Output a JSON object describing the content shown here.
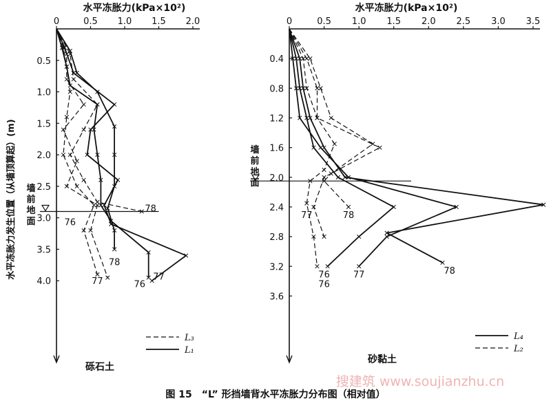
{
  "figure": {
    "caption": "图 15　“L” 形挡墙背水平冻胀力分布图（相对值）",
    "watermark": "搜建筑 www.soujianzhu.cn"
  },
  "chart_data": [
    {
      "type": "line",
      "panel_label": "砾石土",
      "xlabel": "水平冻胀力(kPa×10²)",
      "ylabel": "水平冻胀力发生位置（从墙顶算起）(m)",
      "xlim": [
        0,
        2.0
      ],
      "ylim": [
        0,
        4.5
      ],
      "xticks": [
        0,
        0.5,
        1.0,
        1.5,
        2.0
      ],
      "xtick_labels": [
        "0",
        "0.5",
        "1.0",
        "1.5",
        "2.0"
      ],
      "yticks": [
        0.5,
        1.0,
        1.5,
        2.0,
        2.5,
        3.0,
        3.5,
        4.0
      ],
      "ytick_labels": [
        "0.5",
        "1.0",
        "1.5",
        "2.0",
        "2.5",
        "3.0",
        "3.5",
        "4.0"
      ],
      "ground_label": "墙前地面",
      "ground_depth": 2.9,
      "legend_position": "bottom-right",
      "legend": [
        {
          "name": "L₃",
          "style": "dashed"
        },
        {
          "name": "L₁",
          "style": "solid"
        }
      ],
      "series": [
        {
          "name": "L₁-76",
          "style": "solid",
          "label": "76",
          "label_at": [
            1.22,
            4.1
          ],
          "points": [
            [
              0.0,
              0.0
            ],
            [
              0.08,
              0.3
            ],
            [
              0.15,
              0.6
            ],
            [
              0.2,
              0.9
            ],
            [
              0.6,
              1.2
            ],
            [
              0.55,
              1.6
            ],
            [
              0.6,
              2.0
            ],
            [
              0.65,
              2.4
            ],
            [
              0.65,
              2.8
            ],
            [
              0.8,
              3.05
            ],
            [
              1.35,
              3.55
            ],
            [
              1.35,
              3.95
            ]
          ]
        },
        {
          "name": "L₁-77",
          "style": "solid",
          "label": "77",
          "label_at": [
            1.5,
            3.98
          ],
          "points": [
            [
              0.0,
              0.0
            ],
            [
              0.12,
              0.3
            ],
            [
              0.25,
              0.7
            ],
            [
              0.85,
              1.2
            ],
            [
              0.5,
              1.6
            ],
            [
              0.45,
              2.0
            ],
            [
              0.9,
              2.4
            ],
            [
              0.7,
              2.8
            ],
            [
              0.8,
              3.1
            ],
            [
              1.9,
              3.6
            ],
            [
              1.4,
              4.0
            ]
          ]
        },
        {
          "name": "L₁-78",
          "style": "solid",
          "label": "",
          "label_at": null,
          "points": [
            [
              0.0,
              0.0
            ],
            [
              0.2,
              0.35
            ],
            [
              0.3,
              0.7
            ],
            [
              0.6,
              1.0
            ],
            [
              0.85,
              1.55
            ],
            [
              0.85,
              2.0
            ],
            [
              0.85,
              2.5
            ],
            [
              0.75,
              2.85
            ],
            [
              0.85,
              3.2
            ],
            [
              0.85,
              3.5
            ]
          ]
        },
        {
          "name": "L₃-76",
          "style": "dashed",
          "label": "",
          "label_at": null,
          "points": [
            [
              0.0,
              0.0
            ],
            [
              0.1,
              0.3
            ],
            [
              0.15,
              0.6
            ],
            [
              0.2,
              1.0
            ],
            [
              0.15,
              1.4
            ],
            [
              0.1,
              2.0
            ],
            [
              0.3,
              2.5
            ],
            [
              0.55,
              2.8
            ],
            [
              0.4,
              3.2
            ],
            [
              0.6,
              3.9
            ]
          ]
        },
        {
          "name": "L₃-77",
          "style": "dashed",
          "label": "77",
          "label_at": [
            0.6,
            4.05
          ],
          "points": [
            [
              0.0,
              0.0
            ],
            [
              0.15,
              0.4
            ],
            [
              0.15,
              0.8
            ],
            [
              0.4,
              1.2
            ],
            [
              0.1,
              1.6
            ],
            [
              0.3,
              2.1
            ],
            [
              0.15,
              2.5
            ],
            [
              0.6,
              2.8
            ],
            [
              0.5,
              3.2
            ],
            [
              0.75,
              3.95
            ]
          ]
        },
        {
          "name": "L₃-78",
          "style": "dashed",
          "label": "78",
          "label_at": [
            1.38,
            2.9
          ],
          "points": [
            [
              0.0,
              0.0
            ],
            [
              0.2,
              0.4
            ],
            [
              0.25,
              0.8
            ],
            [
              0.6,
              1.2
            ],
            [
              0.4,
              1.6
            ],
            [
              0.2,
              2.0
            ],
            [
              0.4,
              2.4
            ],
            [
              0.6,
              2.75
            ],
            [
              1.25,
              2.9
            ]
          ]
        }
      ],
      "extra_labels": [
        {
          "text": "76",
          "at": [
            0.2,
            3.12
          ]
        },
        {
          "text": "78",
          "at": [
            0.85,
            3.75
          ]
        }
      ]
    },
    {
      "type": "line",
      "panel_label": "砂黏土",
      "xlabel": "水平冻胀力(kPa×10²)",
      "ylabel": "",
      "xlim": [
        0,
        3.5
      ],
      "ylim": [
        0,
        3.8
      ],
      "xticks": [
        0,
        0.5,
        1.0,
        1.5,
        2.0,
        2.5,
        3.0,
        3.5
      ],
      "xtick_labels": [
        "0",
        "0.5",
        "1.0",
        "1.5",
        "2.0",
        "2.5",
        "3.0",
        "3.5"
      ],
      "yticks": [
        0.4,
        0.8,
        1.2,
        1.6,
        2.0,
        2.4,
        2.8,
        3.2,
        3.6
      ],
      "ytick_labels": [
        "0.4",
        "0.8",
        "1.2",
        "1.6",
        "2.0",
        "2.4",
        "2.8",
        "3.2",
        "3.6"
      ],
      "ground_label": "墙前地面",
      "ground_depth": 2.05,
      "legend_position": "bottom-right",
      "legend": [
        {
          "name": "L₄",
          "style": "solid"
        },
        {
          "name": "L₂",
          "style": "dashed"
        }
      ],
      "series": [
        {
          "name": "L₄-76",
          "style": "solid",
          "label": "76",
          "label_at": [
            0.5,
            3.35
          ],
          "points": [
            [
              0.0,
              0.0
            ],
            [
              0.1,
              0.4
            ],
            [
              0.15,
              0.8
            ],
            [
              0.25,
              1.2
            ],
            [
              0.35,
              1.6
            ],
            [
              0.7,
              2.0
            ],
            [
              1.5,
              2.4
            ],
            [
              1.0,
              2.8
            ],
            [
              0.55,
              3.2
            ]
          ]
        },
        {
          "name": "L₄-77",
          "style": "solid",
          "label": "77",
          "label_at": [
            1.0,
            3.35
          ],
          "points": [
            [
              0.0,
              0.0
            ],
            [
              0.05,
              0.4
            ],
            [
              0.1,
              0.8
            ],
            [
              0.15,
              1.2
            ],
            [
              0.45,
              1.6
            ],
            [
              0.85,
              2.0
            ],
            [
              2.4,
              2.4
            ],
            [
              1.4,
              2.8
            ],
            [
              1.0,
              3.2
            ]
          ]
        },
        {
          "name": "L₄-78",
          "style": "solid",
          "label": "78",
          "label_at": [
            2.3,
            3.3
          ],
          "points": [
            [
              0.0,
              0.0
            ],
            [
              0.15,
              0.4
            ],
            [
              0.2,
              0.8
            ],
            [
              0.3,
              1.2
            ],
            [
              0.5,
              1.6
            ],
            [
              0.8,
              2.0
            ],
            [
              3.65,
              2.37
            ],
            [
              1.4,
              2.75
            ],
            [
              2.2,
              3.15
            ]
          ]
        },
        {
          "name": "L₂-76",
          "style": "dashed",
          "label": "",
          "label_at": null,
          "points": [
            [
              0.0,
              0.0
            ],
            [
              0.2,
              0.4
            ],
            [
              0.25,
              0.8
            ],
            [
              0.4,
              1.2
            ],
            [
              0.65,
              1.55
            ],
            [
              0.5,
              1.9
            ],
            [
              0.3,
              2.05
            ],
            [
              0.25,
              2.35
            ],
            [
              0.35,
              2.8
            ],
            [
              0.4,
              3.2
            ]
          ]
        },
        {
          "name": "L₂-77",
          "style": "dashed",
          "label": "",
          "label_at": null,
          "points": [
            [
              0.0,
              0.0
            ],
            [
              0.25,
              0.4
            ],
            [
              0.4,
              0.8
            ],
            [
              0.4,
              1.2
            ],
            [
              1.3,
              1.6
            ],
            [
              0.5,
              2.0
            ],
            [
              0.35,
              2.4
            ],
            [
              0.5,
              2.8
            ]
          ]
        },
        {
          "name": "L₂-78",
          "style": "dashed",
          "label": "",
          "label_at": null,
          "points": [
            [
              0.0,
              0.0
            ],
            [
              0.3,
              0.4
            ],
            [
              0.45,
              0.8
            ],
            [
              0.6,
              1.2
            ],
            [
              1.2,
              1.55
            ],
            [
              0.6,
              1.95
            ],
            [
              0.5,
              2.05
            ],
            [
              0.85,
              2.4
            ]
          ]
        }
      ],
      "extra_labels": [
        {
          "text": "77",
          "at": [
            0.25,
            2.55
          ]
        },
        {
          "text": "78",
          "at": [
            0.85,
            2.55
          ]
        },
        {
          "text": "76",
          "at": [
            0.5,
            3.48
          ]
        }
      ]
    }
  ]
}
